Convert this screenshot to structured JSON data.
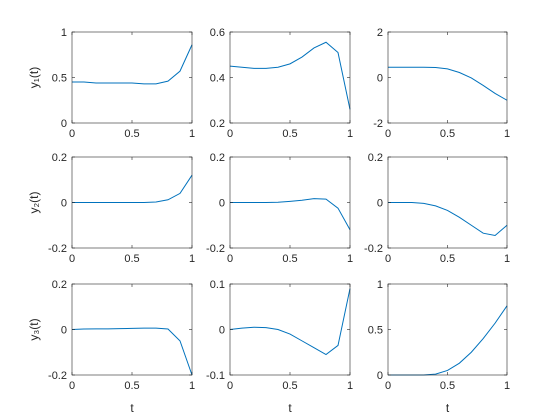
{
  "chart_data": [
    {
      "type": "line",
      "ylabel": "y₁(t)",
      "x": [
        0,
        0.1,
        0.2,
        0.3,
        0.4,
        0.5,
        0.6,
        0.7,
        0.8,
        0.9,
        1
      ],
      "series": [
        {
          "color": "#0072bd",
          "values": [
            0.45,
            0.45,
            0.44,
            0.44,
            0.44,
            0.44,
            0.43,
            0.43,
            0.46,
            0.57,
            0.86
          ]
        }
      ],
      "xlim": [
        0,
        1
      ],
      "ylim": [
        0,
        1
      ],
      "xticks": [
        0,
        0.5,
        1
      ],
      "yticks": [
        0,
        0.5,
        1
      ]
    },
    {
      "type": "line",
      "x": [
        0,
        0.1,
        0.2,
        0.3,
        0.4,
        0.5,
        0.6,
        0.7,
        0.8,
        0.9,
        1
      ],
      "series": [
        {
          "color": "#0072bd",
          "values": [
            0.45,
            0.445,
            0.44,
            0.44,
            0.445,
            0.46,
            0.49,
            0.53,
            0.555,
            0.51,
            0.26
          ]
        }
      ],
      "xlim": [
        0,
        1
      ],
      "ylim": [
        0.2,
        0.6
      ],
      "xticks": [
        0,
        0.5,
        1
      ],
      "yticks": [
        0.2,
        0.4,
        0.6
      ]
    },
    {
      "type": "line",
      "x": [
        0,
        0.1,
        0.2,
        0.3,
        0.4,
        0.5,
        0.6,
        0.7,
        0.8,
        0.9,
        1
      ],
      "series": [
        {
          "color": "#0072bd",
          "values": [
            0.45,
            0.45,
            0.45,
            0.45,
            0.44,
            0.38,
            0.22,
            -0.02,
            -0.35,
            -0.7,
            -1.0
          ]
        }
      ],
      "xlim": [
        0,
        1
      ],
      "ylim": [
        -2,
        2
      ],
      "xticks": [
        0,
        0.5,
        1
      ],
      "yticks": [
        -2,
        0,
        2
      ]
    },
    {
      "type": "line",
      "ylabel": "y₂(t)",
      "x": [
        0,
        0.1,
        0.2,
        0.3,
        0.4,
        0.5,
        0.6,
        0.7,
        0.8,
        0.9,
        1
      ],
      "series": [
        {
          "color": "#0072bd",
          "values": [
            0,
            0,
            0,
            0,
            0,
            0,
            0,
            0.002,
            0.012,
            0.04,
            0.12
          ]
        }
      ],
      "xlim": [
        0,
        1
      ],
      "ylim": [
        -0.2,
        0.2
      ],
      "xticks": [
        0,
        0.5,
        1
      ],
      "yticks": [
        -0.2,
        0,
        0.2
      ]
    },
    {
      "type": "line",
      "x": [
        0,
        0.1,
        0.2,
        0.3,
        0.4,
        0.5,
        0.6,
        0.7,
        0.8,
        0.9,
        1
      ],
      "series": [
        {
          "color": "#0072bd",
          "values": [
            0,
            0,
            0,
            0,
            0.001,
            0.005,
            0.01,
            0.017,
            0.015,
            -0.025,
            -0.12
          ]
        }
      ],
      "xlim": [
        0,
        1
      ],
      "ylim": [
        -0.2,
        0.2
      ],
      "xticks": [
        0,
        0.5,
        1
      ],
      "yticks": [
        -0.2,
        0,
        0.2
      ]
    },
    {
      "type": "line",
      "x": [
        0,
        0.1,
        0.2,
        0.3,
        0.4,
        0.5,
        0.6,
        0.7,
        0.8,
        0.9,
        1
      ],
      "series": [
        {
          "color": "#0072bd",
          "values": [
            0,
            0,
            0,
            -0.004,
            -0.015,
            -0.035,
            -0.065,
            -0.1,
            -0.135,
            -0.145,
            -0.1
          ]
        }
      ],
      "xlim": [
        0,
        1
      ],
      "ylim": [
        -0.2,
        0.2
      ],
      "xticks": [
        0,
        0.5,
        1
      ],
      "yticks": [
        -0.2,
        0,
        0.2
      ]
    },
    {
      "type": "line",
      "ylabel": "y₃(t)",
      "xlabel": "t",
      "x": [
        0,
        0.1,
        0.2,
        0.3,
        0.4,
        0.5,
        0.6,
        0.7,
        0.8,
        0.9,
        1
      ],
      "series": [
        {
          "color": "#0072bd",
          "values": [
            0,
            0.002,
            0.003,
            0.003,
            0.004,
            0.005,
            0.006,
            0.006,
            0.002,
            -0.05,
            -0.2
          ]
        }
      ],
      "xlim": [
        0,
        1
      ],
      "ylim": [
        -0.2,
        0.2
      ],
      "xticks": [
        0,
        0.5,
        1
      ],
      "yticks": [
        -0.2,
        0,
        0.2
      ]
    },
    {
      "type": "line",
      "xlabel": "t",
      "x": [
        0,
        0.1,
        0.2,
        0.3,
        0.4,
        0.5,
        0.6,
        0.7,
        0.8,
        0.9,
        1
      ],
      "series": [
        {
          "color": "#0072bd",
          "values": [
            0,
            0.003,
            0.005,
            0.004,
            0,
            -0.01,
            -0.025,
            -0.04,
            -0.055,
            -0.035,
            0.09
          ]
        }
      ],
      "xlim": [
        0,
        1
      ],
      "ylim": [
        -0.1,
        0.1
      ],
      "xticks": [
        0,
        0.5,
        1
      ],
      "yticks": [
        -0.1,
        0,
        0.1
      ]
    },
    {
      "type": "line",
      "xlabel": "t",
      "x": [
        0,
        0.1,
        0.2,
        0.3,
        0.4,
        0.5,
        0.6,
        0.7,
        0.8,
        0.9,
        1
      ],
      "series": [
        {
          "color": "#0072bd",
          "values": [
            0,
            0,
            0,
            0,
            0.01,
            0.05,
            0.13,
            0.25,
            0.4,
            0.57,
            0.76
          ]
        }
      ],
      "xlim": [
        0,
        1
      ],
      "ylim": [
        0,
        1
      ],
      "xticks": [
        0,
        0.5,
        1
      ],
      "yticks": [
        0,
        0.5,
        1
      ]
    }
  ]
}
